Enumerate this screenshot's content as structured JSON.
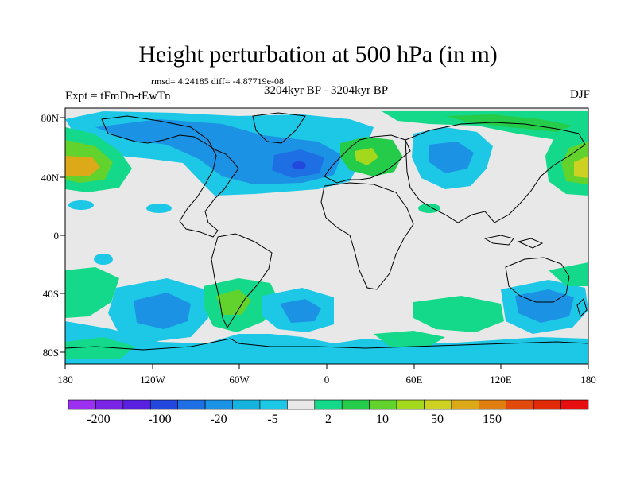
{
  "title": "Height perturbation at 500 hPa (in m)",
  "stats_text": "rmsd= 4.24185 diff= -4.87719e-08",
  "subtitle": "3204kyr BP - 3204kyr BP",
  "left_label": "Expt = tFmDn-tEwTn",
  "right_label": "DJF",
  "lat_ticks": [
    "80N",
    "40N",
    "0",
    "40S",
    "80S"
  ],
  "lon_ticks": [
    "180",
    "120W",
    "60W",
    "0",
    "60E",
    "120E",
    "180"
  ],
  "colorbar": {
    "labels": [
      "-200",
      "-100",
      "-20",
      "-5",
      "2",
      "10",
      "50",
      "150"
    ],
    "colors": [
      "#9b30f0",
      "#7a25e6",
      "#5a20e0",
      "#2448dd",
      "#1e6fe4",
      "#1b92e3",
      "#16b3df",
      "#1dc8e6",
      "#e8e8e8",
      "#15d98a",
      "#24cc4a",
      "#62d22c",
      "#a4d81c",
      "#cdd222",
      "#dcaa18",
      "#e07e10",
      "#e14a0c",
      "#e02a08",
      "#e60e0e"
    ]
  },
  "map_colors": {
    "background": "#e8e8e8",
    "neg_light": "#1dc8e6",
    "neg_mid": "#1b92e3",
    "neg_dark": "#1e6fe4",
    "pos_light": "#15d98a",
    "pos_mid": "#24cc4a",
    "pos_yg": "#a4d81c",
    "pos_yellow": "#cdd222",
    "pos_orange": "#dcaa18"
  }
}
